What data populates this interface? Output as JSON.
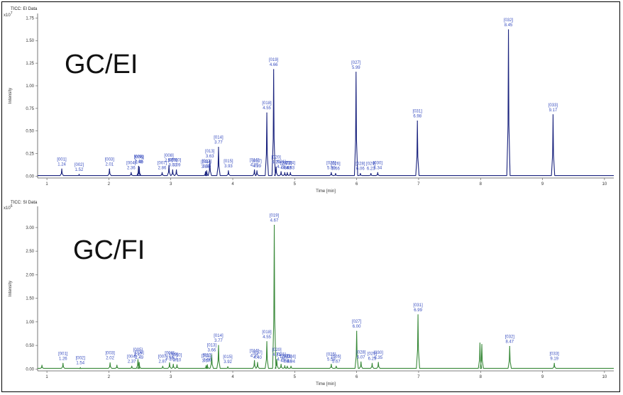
{
  "chart_data": [
    {
      "type": "line",
      "title": "TICC: EI Data",
      "overlay_label": "GC/EI",
      "xlabel": "Time [min]",
      "ylabel": "Intensity",
      "y_exponent": "x10",
      "y_exponent_power": "7",
      "xlim": [
        0.85,
        10.15
      ],
      "ylim": [
        -0.02,
        1.8
      ],
      "x_ticks": [
        "1",
        "2",
        "3",
        "4",
        "5",
        "6",
        "7",
        "8",
        "9",
        "10"
      ],
      "y_ticks": [
        "0.00",
        "0.25",
        "0.50",
        "0.75",
        "1.00",
        "1.25",
        "1.50",
        "1.75"
      ],
      "series": [
        {
          "color": "#1a237e",
          "peaks": [
            {
              "x": 1.24,
              "y": 0.08,
              "id": "[001]",
              "rt": "1.24"
            },
            {
              "x": 1.52,
              "y": 0.02,
              "id": "[002]",
              "rt": "1.52"
            },
            {
              "x": 2.01,
              "y": 0.08,
              "id": "[003]",
              "rt": "2.01"
            },
            {
              "x": 2.36,
              "y": 0.04,
              "id": "[004]",
              "rt": "2.36"
            },
            {
              "x": 2.48,
              "y": 0.11,
              "id": "[005]",
              "rt": "2.48"
            },
            {
              "x": 2.49,
              "y": 0.1,
              "id": "[006]",
              "rt": "2.49"
            },
            {
              "x": 2.86,
              "y": 0.04,
              "id": "[007]",
              "rt": "2.86"
            },
            {
              "x": 2.97,
              "y": 0.12,
              "id": "[008]",
              "rt": "2.97"
            },
            {
              "x": 3.03,
              "y": 0.07,
              "id": "[009]",
              "rt": "3.03"
            },
            {
              "x": 3.09,
              "y": 0.07,
              "id": "[010]",
              "rt": "3.09"
            },
            {
              "x": 3.56,
              "y": 0.05,
              "id": "[011]",
              "rt": "3.56"
            },
            {
              "x": 3.58,
              "y": 0.06,
              "id": "[012]",
              "rt": "3.58"
            },
            {
              "x": 3.63,
              "y": 0.17,
              "id": "[013]",
              "rt": "3.63"
            },
            {
              "x": 3.77,
              "y": 0.32,
              "id": "[014]",
              "rt": "3.77"
            },
            {
              "x": 3.93,
              "y": 0.06,
              "id": "[015]",
              "rt": "3.93"
            },
            {
              "x": 4.35,
              "y": 0.07,
              "id": "[016]",
              "rt": "4.35"
            },
            {
              "x": 4.39,
              "y": 0.06,
              "id": "[017]",
              "rt": "4.39"
            },
            {
              "x": 4.55,
              "y": 0.7,
              "id": "[018]",
              "rt": "4.55"
            },
            {
              "x": 4.66,
              "y": 1.18,
              "id": "[019]",
              "rt": "4.66"
            },
            {
              "x": 4.7,
              "y": 0.1,
              "id": "[020]",
              "rt": "4.70"
            },
            {
              "x": 4.78,
              "y": 0.05,
              "id": "[021]",
              "rt": "4.78"
            },
            {
              "x": 4.84,
              "y": 0.04,
              "id": "[022]",
              "rt": "4.84"
            },
            {
              "x": 4.88,
              "y": 0.04,
              "id": "[023]",
              "rt": "4.88"
            },
            {
              "x": 4.93,
              "y": 0.04,
              "id": "[024]",
              "rt": "4.93"
            },
            {
              "x": 5.59,
              "y": 0.04,
              "id": "[025]",
              "rt": "5.59"
            },
            {
              "x": 5.66,
              "y": 0.03,
              "id": "[026]",
              "rt": "5.66"
            },
            {
              "x": 5.99,
              "y": 1.15,
              "id": "[027]",
              "rt": "5.99"
            },
            {
              "x": 6.06,
              "y": 0.03,
              "id": "[028]",
              "rt": "6.06"
            },
            {
              "x": 6.23,
              "y": 0.03,
              "id": "[029]",
              "rt": "6.23"
            },
            {
              "x": 6.34,
              "y": 0.04,
              "id": "[030]",
              "rt": "6.34"
            },
            {
              "x": 6.98,
              "y": 0.61,
              "id": "[031]",
              "rt": "6.98"
            },
            {
              "x": 8.45,
              "y": 1.62,
              "id": "[032]",
              "rt": "8.45"
            },
            {
              "x": 9.17,
              "y": 0.68,
              "id": "[033]",
              "rt": "9.17"
            }
          ]
        }
      ]
    },
    {
      "type": "line",
      "title": "TICC: SI Data",
      "overlay_label": "GC/FI",
      "xlabel": "Time [min]",
      "ylabel": "Intensity",
      "y_exponent": "x10",
      "y_exponent_power": "6",
      "xlim": [
        0.85,
        10.15
      ],
      "ylim": [
        -0.04,
        3.45
      ],
      "x_ticks": [
        "1",
        "2",
        "3",
        "4",
        "5",
        "6",
        "7",
        "8",
        "9",
        "10"
      ],
      "y_ticks": [
        "0.00",
        "0.50",
        "1.00",
        "1.50",
        "2.00",
        "2.50",
        "3.00"
      ],
      "series": [
        {
          "color": "#3a8a3a",
          "peaks": [
            {
              "x": 0.92,
              "y": 0.08
            },
            {
              "x": 1.26,
              "y": 0.12,
              "id": "[001]",
              "rt": "1.26"
            },
            {
              "x": 1.54,
              "y": 0.03,
              "id": "[002]",
              "rt": "1.54"
            },
            {
              "x": 2.02,
              "y": 0.13,
              "id": "[003]",
              "rt": "2.02"
            },
            {
              "x": 2.13,
              "y": 0.08
            },
            {
              "x": 2.37,
              "y": 0.06,
              "id": "[004]",
              "rt": "2.37"
            },
            {
              "x": 2.47,
              "y": 0.2,
              "id": "[005]",
              "rt": "2.47"
            },
            {
              "x": 2.49,
              "y": 0.14,
              "id": "[006]",
              "rt": "2.49"
            },
            {
              "x": 2.87,
              "y": 0.06,
              "id": "[007]",
              "rt": "2.87"
            },
            {
              "x": 2.98,
              "y": 0.13,
              "id": "[008]",
              "rt": "2.98"
            },
            {
              "x": 3.04,
              "y": 0.1,
              "id": "[009]",
              "rt": "3.04"
            },
            {
              "x": 3.1,
              "y": 0.09,
              "id": "[010]",
              "rt": "3.10"
            },
            {
              "x": 3.57,
              "y": 0.07,
              "id": "[011]",
              "rt": "3.57"
            },
            {
              "x": 3.59,
              "y": 0.09,
              "id": "[012]",
              "rt": "3.59"
            },
            {
              "x": 3.66,
              "y": 0.3,
              "id": "[013]",
              "rt": "3.66"
            },
            {
              "x": 3.77,
              "y": 0.5,
              "id": "[014]",
              "rt": "3.77"
            },
            {
              "x": 3.92,
              "y": 0.05,
              "id": "[015]",
              "rt": "3.92"
            },
            {
              "x": 4.35,
              "y": 0.18,
              "id": "[016]",
              "rt": "4.35"
            },
            {
              "x": 4.4,
              "y": 0.14,
              "id": "[017]",
              "rt": "4.40"
            },
            {
              "x": 4.55,
              "y": 0.58,
              "id": "[018]",
              "rt": "4.55"
            },
            {
              "x": 4.67,
              "y": 3.05,
              "id": "[019]",
              "rt": "4.67"
            },
            {
              "x": 4.71,
              "y": 0.2,
              "id": "[020]",
              "rt": "4.71"
            },
            {
              "x": 4.78,
              "y": 0.1,
              "id": "[021]",
              "rt": "4.78"
            },
            {
              "x": 4.84,
              "y": 0.07,
              "id": "[022]",
              "rt": "4.84"
            },
            {
              "x": 4.88,
              "y": 0.06,
              "id": "[023]",
              "rt": "4.88"
            },
            {
              "x": 4.94,
              "y": 0.06,
              "id": "[024]",
              "rt": "4.94"
            },
            {
              "x": 5.59,
              "y": 0.1,
              "id": "[025]",
              "rt": "5.59"
            },
            {
              "x": 5.67,
              "y": 0.06,
              "id": "[026]",
              "rt": "5.67"
            },
            {
              "x": 6.0,
              "y": 0.8,
              "id": "[027]",
              "rt": "6.00"
            },
            {
              "x": 6.07,
              "y": 0.15,
              "id": "[028]",
              "rt": "6.07"
            },
            {
              "x": 6.25,
              "y": 0.12,
              "id": "[029]",
              "rt": "6.25"
            },
            {
              "x": 6.35,
              "y": 0.14,
              "id": "[030]",
              "rt": "6.35"
            },
            {
              "x": 6.99,
              "y": 1.15,
              "id": "[031]",
              "rt": "6.99"
            },
            {
              "x": 7.99,
              "y": 0.55
            },
            {
              "x": 8.02,
              "y": 0.52
            },
            {
              "x": 8.47,
              "y": 0.48,
              "id": "[032]",
              "rt": "8.47"
            },
            {
              "x": 9.19,
              "y": 0.12,
              "id": "[033]",
              "rt": "9.19"
            }
          ]
        }
      ]
    }
  ]
}
